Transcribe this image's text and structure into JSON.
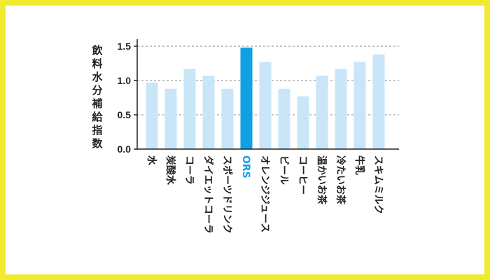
{
  "colors": {
    "background": "#f2ea2f",
    "panel": "#ffffff",
    "bar": "#c9e6f8",
    "highlight_bar": "#0fa0e6",
    "highlight_label": "#0fa0e6",
    "grid": "#888888",
    "axis": "#222222"
  },
  "chart_data": {
    "type": "bar",
    "ylabel": "飲料水分補給指数",
    "xlabel": "",
    "ylim": [
      0,
      1.6
    ],
    "yticks": [
      "0.0",
      "0.5",
      "1.0",
      "1.5"
    ],
    "grid": true,
    "highlight": "ORS",
    "categories": [
      "水",
      "炭酸水",
      "コーラ",
      "ダイエットコーラ",
      "スポーツドリンク",
      "ORS",
      "オレンジジュース",
      "ビール",
      "コーヒー",
      "温かいお茶",
      "冷たいお茶",
      "牛乳",
      "スキムミルク"
    ],
    "values": [
      0.97,
      0.88,
      1.17,
      1.07,
      0.88,
      1.48,
      1.27,
      0.88,
      0.77,
      1.07,
      1.17,
      1.27,
      1.38
    ]
  }
}
